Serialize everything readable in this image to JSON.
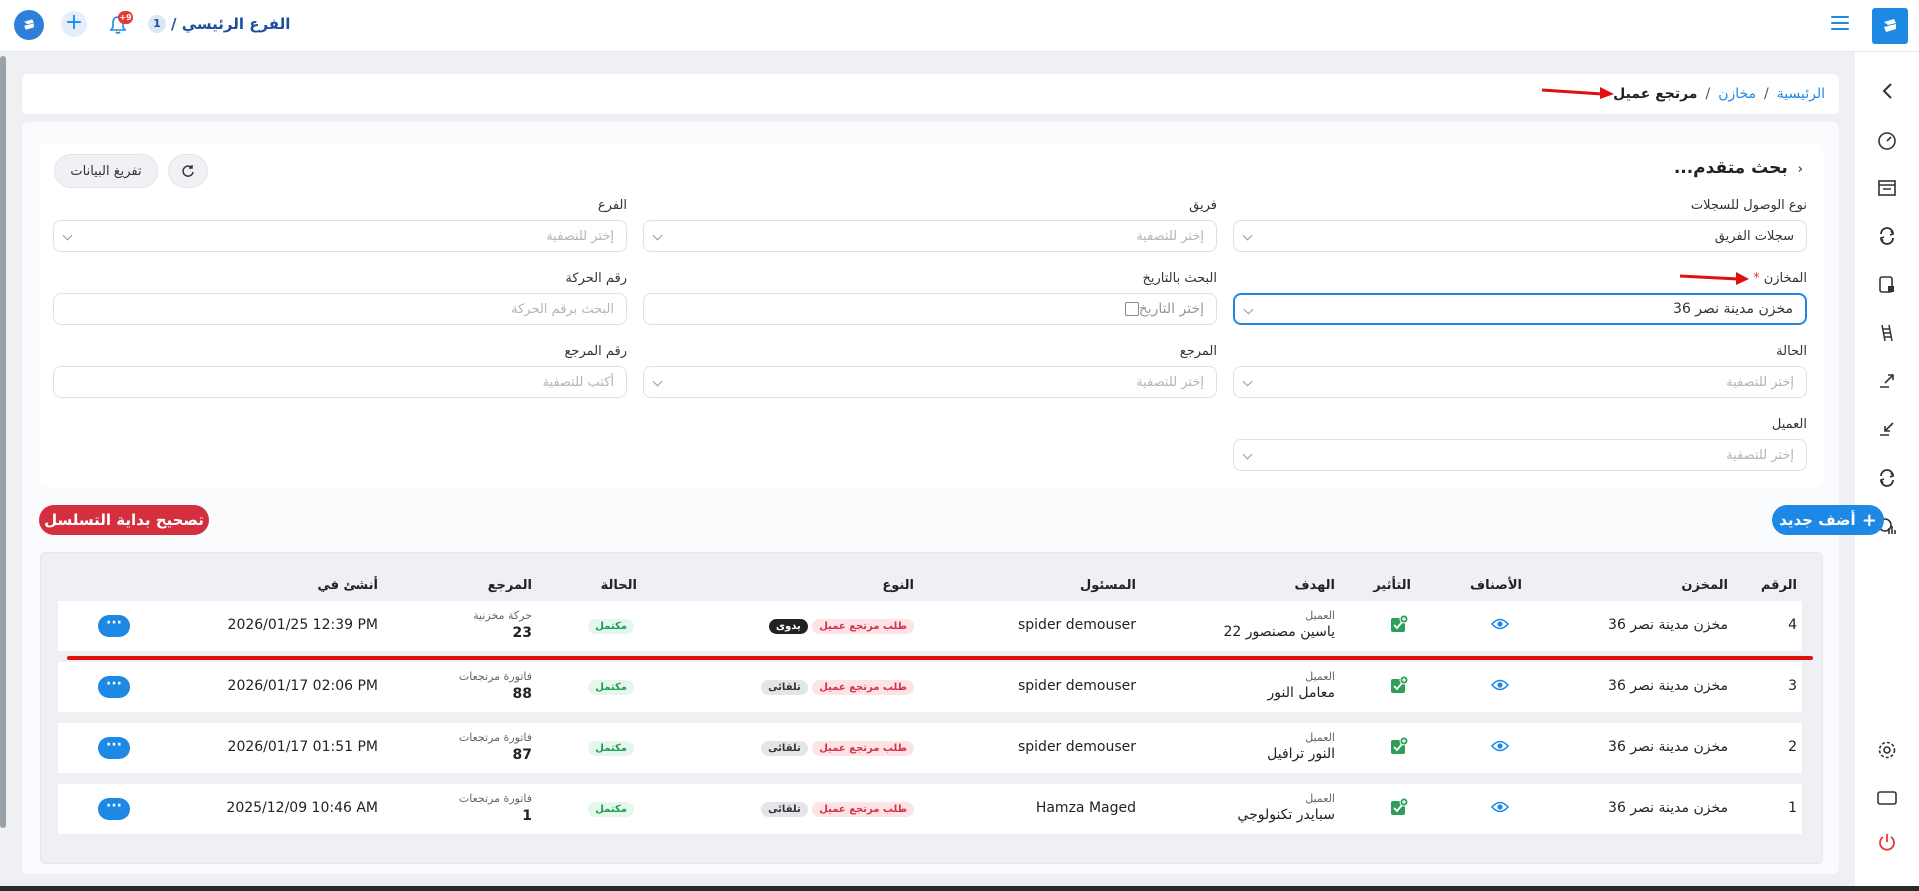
{
  "topbar": {
    "branch_name": "الفرع الرئيسي /",
    "branch_count": "1",
    "notif_count": "+9"
  },
  "breadcrumb": {
    "home": "الرئيسية",
    "sep": "/",
    "warehouses": "مخازن",
    "current": "مرتجع عميل"
  },
  "filters": {
    "title": "بحث متقدم...",
    "export_label": "تفريغ البيانات",
    "access_type": {
      "label": "نوع الوصول للسجلات",
      "value": "سجلات الفريق"
    },
    "team": {
      "label": "فريق",
      "placeholder": "إختر للتصفية"
    },
    "branch": {
      "label": "الفرع",
      "placeholder": "إختر للتصفية"
    },
    "warehouses": {
      "label": "المخازن",
      "required": "*",
      "value": "مخزن مدينة نصر 36"
    },
    "date_search": {
      "label": "البحث بالتاريخ",
      "placeholder": "إختر التاريخ"
    },
    "movement_no": {
      "label": "رقم الحركة",
      "placeholder": "البحث برقم الحركة"
    },
    "status": {
      "label": "الحالة",
      "placeholder": "إختر للتصفية"
    },
    "reference": {
      "label": "المرجع",
      "placeholder": "إختر للتصفية"
    },
    "reference_no": {
      "label": "رقم المرجع",
      "placeholder": "أكتب للتصفية"
    },
    "customer": {
      "label": "العميل",
      "placeholder": "إختر للتصفية"
    }
  },
  "actions": {
    "add_new": "أضف جديد",
    "fix_sequence": "تصحيح بداية التسلسل"
  },
  "table": {
    "columns": [
      "الرقم",
      "المخزن",
      "الأصناف",
      "التأثير",
      "الهدف",
      "المسئول",
      "النوع",
      "الحالة",
      "المرجع",
      "أنشئ في"
    ],
    "rows": [
      {
        "no": "4",
        "warehouse": "مخزن مدينة نصر 36",
        "target_type": "العميل",
        "target": "ياسين مصنصور 22",
        "owner": "spider demouser",
        "type": "طلب مرتجع عميل",
        "mode": "يدوى",
        "status": "مكتمل",
        "ref_type": "حركة مخزنية",
        "ref_no": "23",
        "created": "2026/01/25 12:39 PM"
      },
      {
        "no": "3",
        "warehouse": "مخزن مدينة نصر 36",
        "target_type": "العميل",
        "target": "معامل النور",
        "owner": "spider demouser",
        "type": "طلب مرتجع عميل",
        "mode": "تلقائى",
        "status": "مكتمل",
        "ref_type": "فاتورة مرتجعات",
        "ref_no": "88",
        "created": "2026/01/17 02:06 PM"
      },
      {
        "no": "2",
        "warehouse": "مخزن مدينة نصر 36",
        "target_type": "العميل",
        "target": "النور ترافيل",
        "owner": "spider demouser",
        "type": "طلب مرتجع عميل",
        "mode": "تلقائى",
        "status": "مكتمل",
        "ref_type": "فاتورة مرتجعات",
        "ref_no": "87",
        "created": "2026/01/17 01:51 PM"
      },
      {
        "no": "1",
        "warehouse": "مخزن مدينة نصر 36",
        "target_type": "العميل",
        "target": "سبايدر تكنولوجي",
        "owner": "Hamza Maged",
        "type": "طلب مرتجع عميل",
        "mode": "تلقائى",
        "status": "مكتمل",
        "ref_type": "فاتورة مرتجعات",
        "ref_no": "1",
        "created": "2025/12/09 10:46 AM"
      }
    ]
  },
  "more_label": "···",
  "colors": {
    "accent": "#1e88e5",
    "danger": "#d32f3f",
    "success": "#1e9e55",
    "annotation": "#e01010"
  },
  "icons": [
    "chevron-left-icon",
    "speedometer-icon",
    "warehouse-icon",
    "sync-icon",
    "device-icon",
    "ladder-icon",
    "transfer-out-icon",
    "transfer-in-icon",
    "refresh-icon",
    "report-icon",
    "settings-icon",
    "window-icon",
    "power-icon"
  ]
}
